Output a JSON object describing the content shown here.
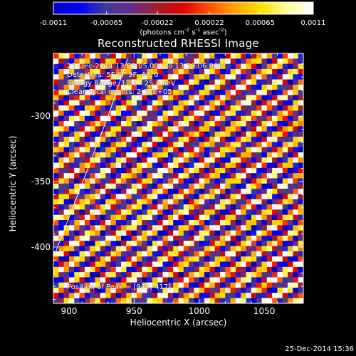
{
  "chart_data": {
    "type": "heatmap",
    "title": "Reconstructed RHESSI Image",
    "xlabel": "Heliocentric X (arcsec)",
    "ylabel": "Heliocentric Y (arcsec)",
    "xlim": [
      888,
      1080
    ],
    "ylim": [
      -443,
      -252
    ],
    "xticks": [
      "900",
      "950",
      "1000",
      "1050"
    ],
    "xtick_values": [
      900,
      950,
      1000,
      1050
    ],
    "yticks": [
      "-300",
      "-350",
      "-400"
    ],
    "ytick_values": [
      -300,
      -350,
      -400
    ],
    "colorbar": {
      "ticks": [
        "-0.0011",
        "-0.00065",
        "-0.00022",
        "0.00022",
        "0.00065",
        "0.0011"
      ],
      "tick_values": [
        -0.0011,
        -0.00065,
        -0.00022,
        0.00022,
        0.00065,
        0.0011
      ],
      "range": [
        -0.0011,
        0.0011
      ],
      "units_parts": [
        "(photons cm",
        "-2",
        " s",
        "-1",
        " asec",
        "-2",
        ")"
      ]
    },
    "info_lines": [
      "25-Dec-2014 13:53:05.000 to 13:59:06.000",
      "Detectors: 5F/6F 9F, Att 0",
      "Energy Range: 12.0 - 25.0 keV",
      "Clean    Total counts: 2.37E+05"
    ],
    "peak_label": "Position of Peak = [949,-417]",
    "limb_curve": [
      [
        890,
        -403
      ],
      [
        930,
        -300
      ],
      [
        945,
        -256
      ]
    ],
    "colors": [
      "#0000c8",
      "#0000ff",
      "#3c3c9c",
      "#6a2a8a",
      "#a01e2a",
      "#e00000",
      "#ff5000",
      "#ffa500",
      "#ffe000",
      "#ffffa0",
      "#ffffff"
    ]
  },
  "footer": {
    "timestamp": "25-Dec-2014 15:36"
  }
}
